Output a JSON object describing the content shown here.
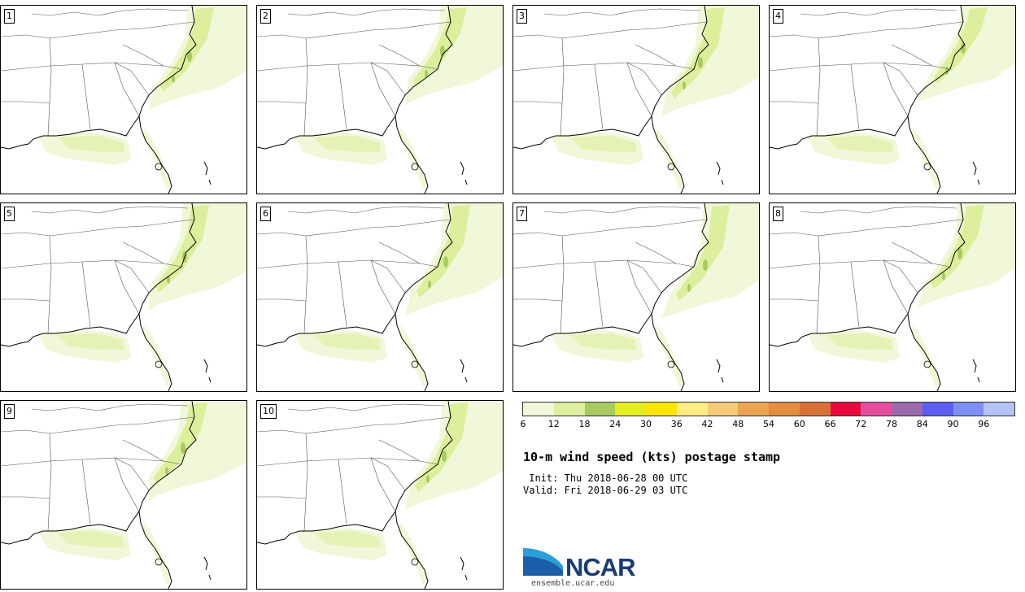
{
  "panels": [
    "1",
    "2",
    "3",
    "4",
    "5",
    "6",
    "7",
    "8",
    "9",
    "10"
  ],
  "colorbar": {
    "colors": [
      "#f1f7d9",
      "#dcef9c",
      "#a7ca61",
      "#e3ee21",
      "#fbe508",
      "#fdeb84",
      "#f5ca79",
      "#eba451",
      "#e48c3f",
      "#d87136",
      "#ea083c",
      "#e54e9c",
      "#9c69ac",
      "#5b5ef0",
      "#7d8ff2",
      "#b4c2f5"
    ],
    "ticks": [
      "6",
      "12",
      "18",
      "24",
      "30",
      "36",
      "42",
      "48",
      "54",
      "60",
      "66",
      "72",
      "78",
      "84",
      "90",
      "96"
    ]
  },
  "title": "10-m wind speed (kts) postage stamp",
  "init": " Init: Thu 2018-06-28 00 UTC",
  "valid": "Valid: Fri 2018-06-29 03 UTC",
  "logo": {
    "wordmark": "NCAR",
    "url": "ensemble.ucar.edu"
  }
}
